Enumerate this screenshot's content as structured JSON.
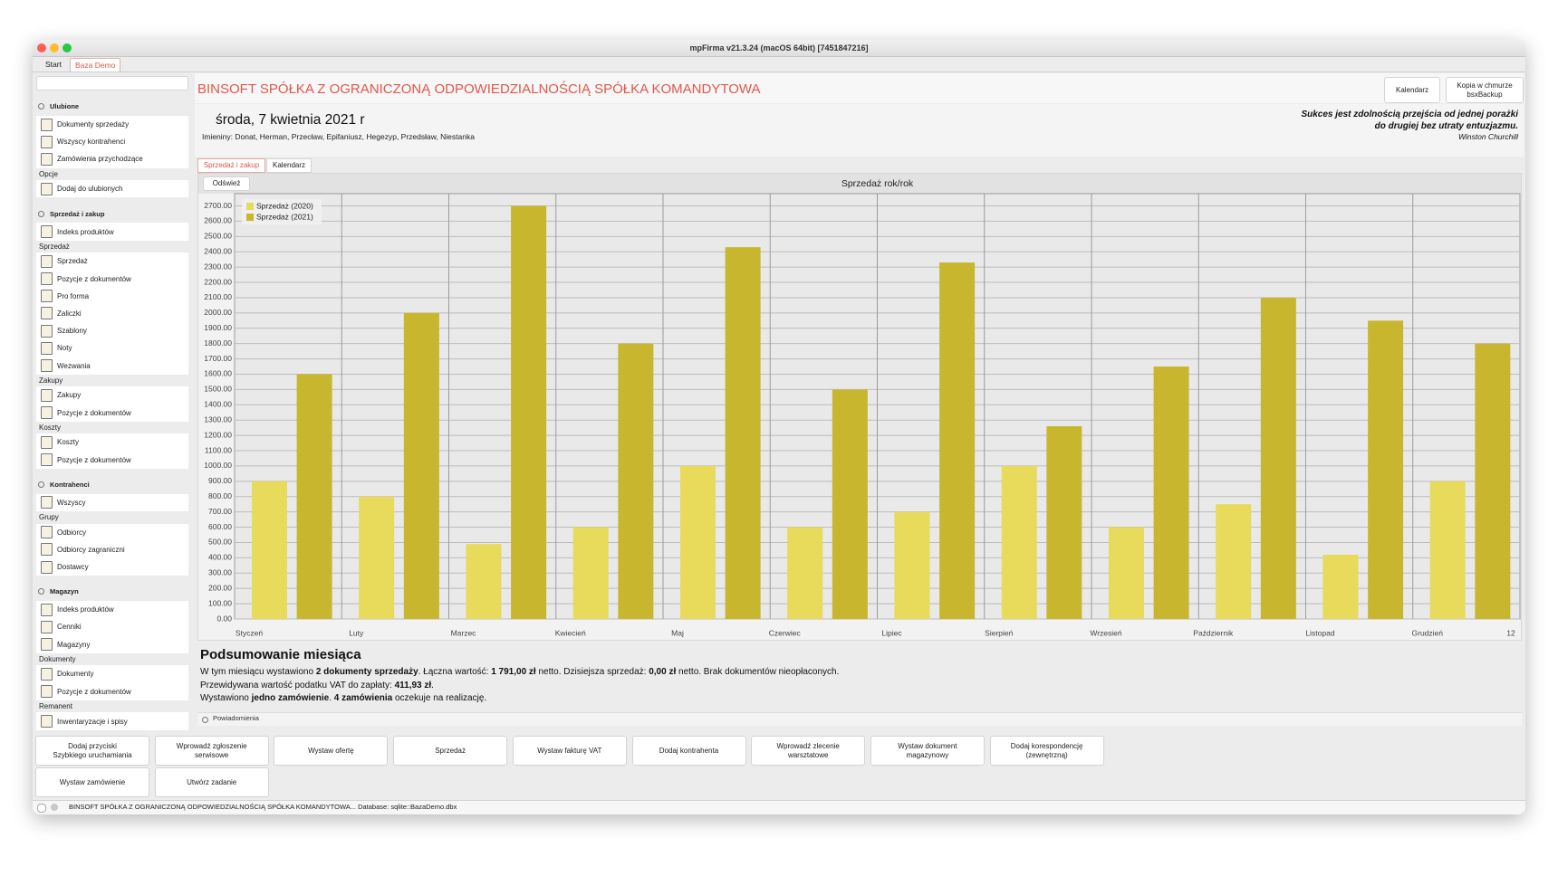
{
  "window_title": "mpFirma v21.3.24 (macOS 64bit) [7451847216]",
  "tabs": [
    "Start",
    "Baza Demo"
  ],
  "sidebar": [
    {
      "title": "Ulubione",
      "groups": [
        {
          "items": [
            "Dokumenty sprzedaży",
            "Wszyscy kontrahenci",
            "Zamówienia przychodzące"
          ]
        },
        {
          "label": "Opcje",
          "items": [
            "Dodaj do ulubionych"
          ]
        }
      ]
    },
    {
      "title": "Sprzedaż i zakup",
      "groups": [
        {
          "items": [
            "Indeks produktów"
          ]
        },
        {
          "label": "Sprzedaż",
          "items": [
            "Sprzedaż",
            "Pozycje z dokumentów",
            "Pro forma",
            "Zaliczki",
            "Szablony",
            "Noty",
            "Wezwania"
          ]
        },
        {
          "label": "Zakupy",
          "items": [
            "Zakupy",
            "Pozycje z dokumentów"
          ]
        },
        {
          "label": "Koszty",
          "items": [
            "Koszty",
            "Pozycje z dokumentów"
          ]
        }
      ]
    },
    {
      "title": "Kontrahenci",
      "groups": [
        {
          "items": [
            "Wszyscy"
          ]
        },
        {
          "label": "Grupy",
          "items": [
            "Odbiorcy",
            "Odbiorcy zagraniczni",
            "Dostawcy"
          ]
        }
      ]
    },
    {
      "title": "Magazyn",
      "groups": [
        {
          "items": [
            "Indeks produktów",
            "Cenniki",
            "Magazyny"
          ]
        },
        {
          "label": "Dokumenty",
          "items": [
            "Dokumenty",
            "Pozycje z dokumentów"
          ]
        },
        {
          "label": "Remanent",
          "items": [
            "Inwentaryzacje i spisy"
          ]
        }
      ]
    }
  ],
  "header": {
    "company": "BINSOFT SPÓŁKA Z OGRANICZONĄ ODPOWIEDZIALNOŚCIĄ SPÓŁKA KOMANDYTOWA",
    "buttons": [
      [
        "Kalendarz"
      ],
      [
        "Kopia w chmurze",
        "bsxBackup"
      ]
    ],
    "date": "środa, 7 kwietnia 2021 r",
    "nameday": "Imieniny: Donat, Herman, Przecław, Epifaniusz, Hegezyp, Przedsław, Niestanka",
    "quote": [
      "Sukces jest zdolnością przejścia od jednej porażki",
      "do drugiej bez utraty entuzjazmu.",
      "Winston Churchill"
    ]
  },
  "subtabs": [
    "Sprzedaż i zakup",
    "Kalendarz"
  ],
  "refresh": "Odśwież",
  "chart_data": {
    "type": "bar",
    "title": "Sprzedaż rok/rok",
    "categories": [
      "Styczeń",
      "Luty",
      "Marzec",
      "Kwiecień",
      "Maj",
      "Czerwiec",
      "Lipiec",
      "Sierpień",
      "Wrzesień",
      "Październik",
      "Listopad",
      "Grudzień"
    ],
    "x_end_label": "12",
    "series": [
      {
        "name": "Sprzedaż (2020)",
        "color": "#e8da5a",
        "values": [
          900,
          800,
          490,
          600,
          1000,
          600,
          700,
          1000,
          600,
          750,
          420,
          900
        ]
      },
      {
        "name": "Sprzedaż (2021)",
        "color": "#c8b72e",
        "values": [
          1600,
          2000,
          2700,
          1800,
          2430,
          1500,
          2330,
          1260,
          1650,
          2100,
          1950,
          1800
        ]
      }
    ],
    "ylim": [
      0,
      2780
    ],
    "yticks": [
      {
        "value": 0,
        "label": "0.00"
      },
      {
        "value": 100,
        "label": "100.00"
      },
      {
        "value": 200,
        "label": "200.00"
      },
      {
        "value": 300,
        "label": "300.00"
      },
      {
        "value": 400,
        "label": "400.00"
      },
      {
        "value": 500,
        "label": "500.00"
      },
      {
        "value": 600,
        "label": "600.00"
      },
      {
        "value": 700,
        "label": "700.00"
      },
      {
        "value": 800,
        "label": "800.00"
      },
      {
        "value": 900,
        "label": "900.00"
      },
      {
        "value": 1000,
        "label": "1000.00"
      },
      {
        "value": 1100,
        "label": "1100.00"
      },
      {
        "value": 1200,
        "label": "1200.00"
      },
      {
        "value": 1300,
        "label": "1300.00"
      },
      {
        "value": 1400,
        "label": "1400.00"
      },
      {
        "value": 1500,
        "label": "1500.00"
      },
      {
        "value": 1600,
        "label": "1600.00"
      },
      {
        "value": 1700,
        "label": "1700.00"
      },
      {
        "value": 1800,
        "label": "1800.00"
      },
      {
        "value": 1900,
        "label": "1900.00"
      },
      {
        "value": 2000,
        "label": "2000.00"
      },
      {
        "value": 2100,
        "label": "2100.00"
      },
      {
        "value": 2200,
        "label": "2200.00"
      },
      {
        "value": 2300,
        "label": "2300.00"
      },
      {
        "value": 2400,
        "label": "2400.00"
      },
      {
        "value": 2500,
        "label": "2500.00"
      },
      {
        "value": 2600,
        "label": "2600.00"
      },
      {
        "value": 2700,
        "label": "2700.00"
      }
    ],
    "grid": true,
    "legend": "top-left"
  },
  "summary": {
    "title": "Podsumowanie miesiąca",
    "lines": [
      [
        {
          "text": "W tym miesiącu wystawiono "
        },
        {
          "text": "2 dokumenty sprzedaży",
          "bold": true
        },
        {
          "text": ". Łączna wartość: "
        },
        {
          "text": "1 791,00 zł",
          "bold": true
        },
        {
          "text": " netto. Dzisiejsza sprzedaż: "
        },
        {
          "text": "0,00 zł",
          "bold": true
        },
        {
          "text": " netto. Brak dokumentów nieopłaconych."
        }
      ],
      [
        {
          "text": "Przewidywana wartość podatku VAT do zapłaty: "
        },
        {
          "text": "411,93 zł",
          "bold": true
        },
        {
          "text": "."
        }
      ],
      [
        {
          "text": "Wystawiono "
        },
        {
          "text": "jedno zamówienie",
          "bold": true
        },
        {
          "text": ". "
        },
        {
          "text": "4 zamówienia",
          "bold": true
        },
        {
          "text": " oczekuje na realizację."
        }
      ]
    ]
  },
  "notifications": "Powiadomienia",
  "quick_buttons": [
    [
      "Dodaj przyciski",
      "Szybkiego uruchamiania"
    ],
    [
      "Wprowadź zgłoszenie",
      "serwisowe"
    ],
    [
      "Wystaw ofertę"
    ],
    [
      "Sprzedaż"
    ],
    [
      "Wystaw fakturę VAT"
    ],
    [
      "Dodaj kontrahenta"
    ],
    [
      "Wprowadź zlecenie",
      "warsztatowe"
    ],
    [
      "Wystaw dokument",
      "magazynowy"
    ],
    [
      "Dodaj korespondencję",
      "(zewnętrzną)"
    ],
    [
      "Wystaw zamówienie"
    ],
    [
      "Utwórz zadanie"
    ]
  ],
  "status": "BINSOFT SPÓŁKA Z OGRANICZONĄ ODPOWIEDZIALNOŚCIĄ SPÓŁKA KOMANDYTOWA... Database: sqlite::BazaDemo.dbx"
}
